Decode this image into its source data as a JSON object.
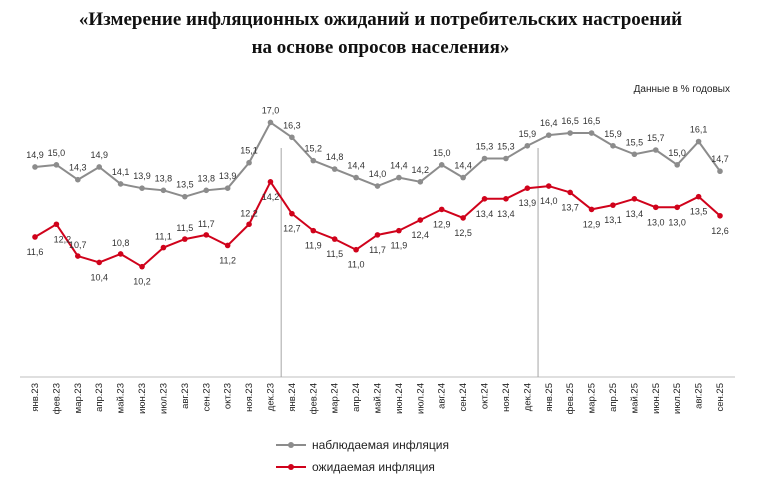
{
  "title_line1": "«Измерение инфляционных ожиданий и потребительских настроений",
  "title_line2": "на основе опросов населения»",
  "units_note": "Данные в % годовых",
  "chart_data": {
    "type": "line",
    "title": "«Измерение инфляционных ожиданий и потребительских настроений на основе опросов населения»",
    "ylabel": "Данные в % годовых",
    "categories": [
      "янв.23",
      "фев.23",
      "мар.23",
      "апр.23",
      "май.23",
      "июн.23",
      "июл.23",
      "авг.23",
      "сен.23",
      "окт.23",
      "ноя.23",
      "дек.23",
      "янв.24",
      "фев.24",
      "мар.24",
      "апр.24",
      "май.24",
      "июн.24",
      "июл.24",
      "авг.24",
      "сен.24",
      "окт.24",
      "ноя.24",
      "дек.24",
      "янв.25",
      "фев.25",
      "мар.25",
      "апр.25",
      "май.25",
      "июн.25",
      "июл.25",
      "авг.25",
      "сен.25"
    ],
    "ylim": [
      5,
      19
    ],
    "year_separators_after": [
      "дек.23",
      "дек.24"
    ],
    "series": [
      {
        "name": "наблюдаемая инфляция",
        "color": "#8c8c8c",
        "values": [
          14.9,
          15.0,
          14.3,
          14.9,
          14.1,
          13.9,
          13.8,
          13.5,
          13.8,
          13.9,
          15.1,
          17.0,
          16.3,
          15.2,
          14.8,
          14.4,
          14.0,
          14.4,
          14.2,
          15.0,
          14.4,
          15.3,
          15.3,
          15.9,
          16.4,
          16.5,
          16.5,
          15.9,
          15.5,
          15.7,
          15.0,
          16.1,
          14.7
        ]
      },
      {
        "name": "ожидаемая инфляция",
        "color": "#d0021b",
        "values": [
          11.6,
          12.2,
          10.7,
          10.4,
          10.8,
          10.2,
          11.1,
          11.5,
          11.7,
          11.2,
          12.2,
          14.2,
          12.7,
          11.9,
          11.5,
          11.0,
          11.7,
          11.9,
          12.4,
          12.9,
          12.5,
          13.4,
          13.4,
          13.9,
          14.0,
          13.7,
          12.9,
          13.1,
          13.4,
          13.0,
          13.0,
          13.5,
          12.6
        ]
      }
    ],
    "legend": [
      "наблюдаемая инфляция",
      "ожидаемая инфляция"
    ],
    "legend_position": "bottom-left"
  }
}
